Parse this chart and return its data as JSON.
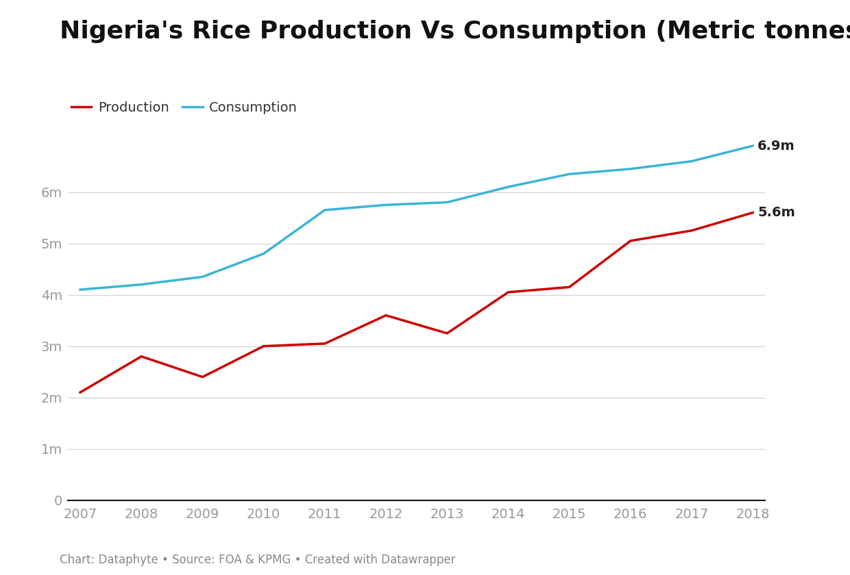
{
  "title": "Nigeria's Rice Production Vs Consumption (Metric tonnes)",
  "years": [
    2007,
    2008,
    2009,
    2010,
    2011,
    2012,
    2013,
    2014,
    2015,
    2016,
    2017,
    2018
  ],
  "production": [
    2100000,
    2800000,
    2400000,
    3000000,
    3050000,
    3600000,
    3250000,
    4050000,
    4150000,
    5050000,
    5250000,
    5600000
  ],
  "consumption": [
    4100000,
    4200000,
    4350000,
    4800000,
    5650000,
    5750000,
    5800000,
    6100000,
    6350000,
    6450000,
    6600000,
    6900000
  ],
  "production_color": "#cc0000",
  "consumption_color": "#3ab5d4",
  "background_color": "#ffffff",
  "grid_color": "#d0d0d0",
  "title_fontsize": 26,
  "tick_fontsize": 14,
  "legend_fontsize": 14,
  "footer_text": "Chart: Dataphyte • Source: FOA & KPMG • Created with Datawrapper",
  "footer_fontsize": 12,
  "yticks": [
    0,
    1000000,
    2000000,
    3000000,
    4000000,
    5000000,
    6000000
  ],
  "ytick_labels": [
    "0",
    "1m",
    "2m",
    "3m",
    "4m",
    "5m",
    "6m"
  ],
  "ylim": [
    0,
    7500000
  ],
  "end_label_production": "5.6m",
  "end_label_consumption": "6.9m",
  "line_width": 2.5,
  "legend_production_label": "Production",
  "legend_consumption_label": "Consumption"
}
